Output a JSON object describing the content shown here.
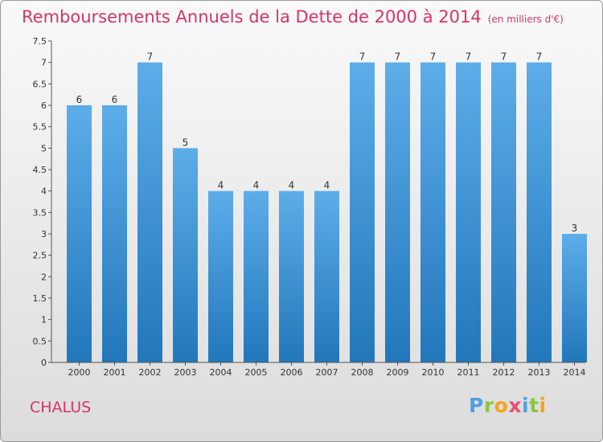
{
  "title": "Remboursements Annuels de la Dette de 2000 à 2014",
  "unit": "(en milliers d'€)",
  "commune": "CHALUS",
  "logo_letters": [
    "P",
    "r",
    "o",
    "x",
    "i",
    "t",
    "i"
  ],
  "colors": {
    "bar_top": "#5dade9",
    "bar_bottom": "#2277bb",
    "title": "#d6336c"
  },
  "chart_data": {
    "type": "bar",
    "categories": [
      "2000",
      "2001",
      "2002",
      "2003",
      "2004",
      "2005",
      "2006",
      "2007",
      "2008",
      "2009",
      "2010",
      "2011",
      "2012",
      "2013",
      "2014"
    ],
    "values": [
      6,
      6,
      7,
      5,
      4,
      4,
      4,
      4,
      7,
      7,
      7,
      7,
      7,
      7,
      3
    ],
    "ylim": [
      0,
      7.5
    ],
    "yticks": [
      "0",
      "0.5",
      "1",
      "1.5",
      "2",
      "2.5",
      "3",
      "3.5",
      "4",
      "4.5",
      "5",
      "5.5",
      "6",
      "6.5",
      "7",
      "7.5"
    ],
    "grid": false
  }
}
